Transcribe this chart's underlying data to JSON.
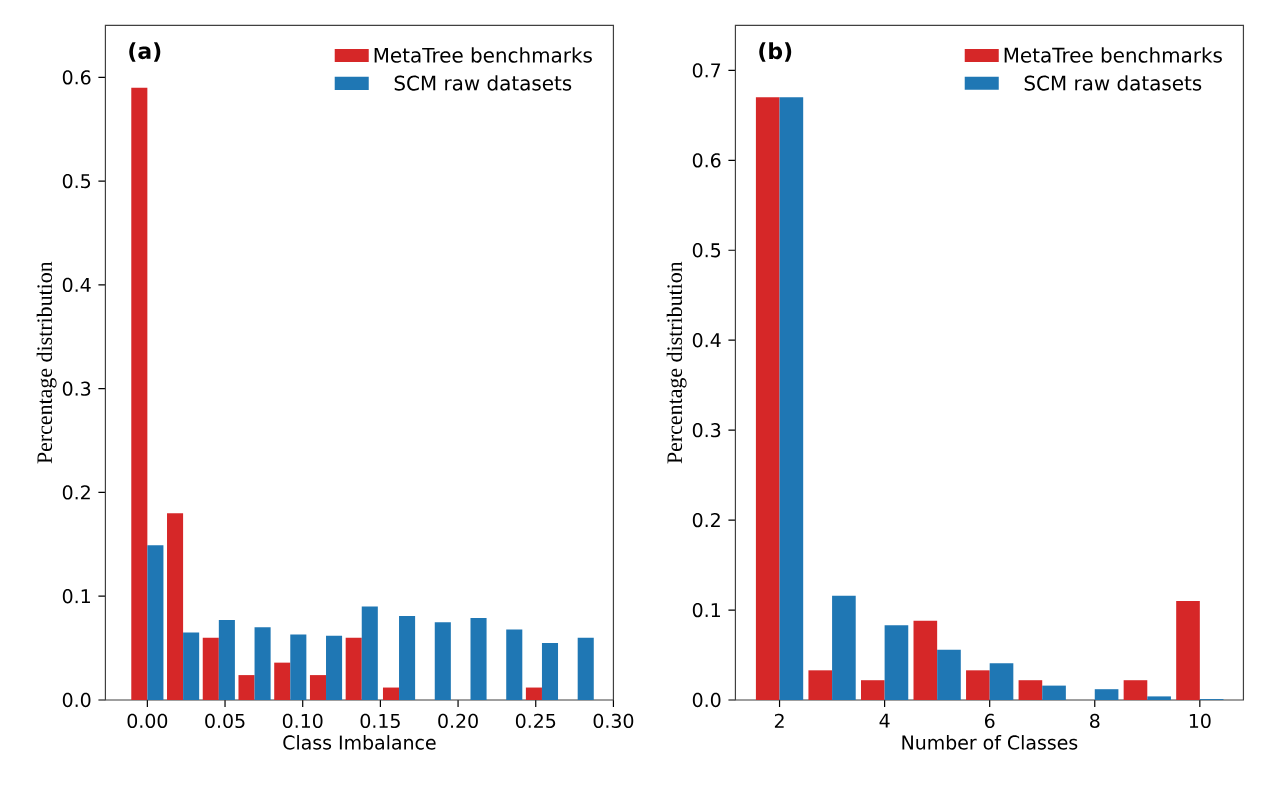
{
  "chart_data": [
    {
      "type": "bar",
      "x": [
        0,
        0.023,
        0.046,
        0.069,
        0.092,
        0.115,
        0.138,
        0.162,
        0.185,
        0.208,
        0.231,
        0.254,
        0.277
      ],
      "series": [
        {
          "name": "MetaTree benchmarks",
          "color": "#d62728",
          "values": [
            0.59,
            0.18,
            0.06,
            0.024,
            0.036,
            0.024,
            0.06,
            0.012,
            0,
            0,
            0,
            0.012,
            0
          ]
        },
        {
          "name": "SCM raw datasets",
          "color": "#1f77b4",
          "values": [
            0.149,
            0.065,
            0.077,
            0.07,
            0.063,
            0.062,
            0.09,
            0.081,
            0.075,
            0.079,
            0.068,
            0.055,
            0.06
          ]
        }
      ],
      "xlim": [
        -0.027,
        0.3
      ],
      "ylim": [
        0,
        0.65
      ],
      "xticks": [
        {
          "value": 0,
          "label": "0.00"
        },
        {
          "value": 0.05,
          "label": "0.05"
        },
        {
          "value": 0.1,
          "label": "0.10"
        },
        {
          "value": 0.15,
          "label": "0.15"
        },
        {
          "value": 0.2,
          "label": "0.20"
        },
        {
          "value": 0.25,
          "label": "0.25"
        },
        {
          "value": 0.3,
          "label": "0.30"
        }
      ],
      "yticks": [
        {
          "value": 0,
          "label": "0.0"
        },
        0.1,
        0.2,
        0.3,
        0.4,
        0.5,
        0.6
      ],
      "xlabel": "Class Imbalance",
      "ylabel": "Percentage distribution",
      "legend": "top right",
      "annotations": [
        "(a)"
      ]
    },
    {
      "type": "bar",
      "x": [
        2,
        3,
        4,
        5,
        6,
        7,
        8,
        9,
        10
      ],
      "series": [
        {
          "name": "MetaTree benchmarks",
          "color": "#d62728",
          "values": [
            0.67,
            0.033,
            0.022,
            0.088,
            0.033,
            0.022,
            0,
            0.022,
            0.11
          ]
        },
        {
          "name": "SCM raw datasets",
          "color": "#1f77b4",
          "values": [
            0.67,
            0.116,
            0.083,
            0.056,
            0.041,
            0.016,
            0.012,
            0.004,
            0.001
          ]
        }
      ],
      "xlim": [
        1.16,
        10.83
      ],
      "ylim": [
        0,
        0.75
      ],
      "xticks": [
        2,
        4,
        6,
        8,
        10
      ],
      "yticks": [
        {
          "value": 0,
          "label": "0.0"
        },
        0.1,
        0.2,
        0.3,
        0.4,
        0.5,
        0.6,
        0.7
      ],
      "xlabel": "Number of Classes",
      "ylabel": "Percentage distribution",
      "legend": "top right",
      "annotations": [
        "(b)"
      ]
    }
  ]
}
